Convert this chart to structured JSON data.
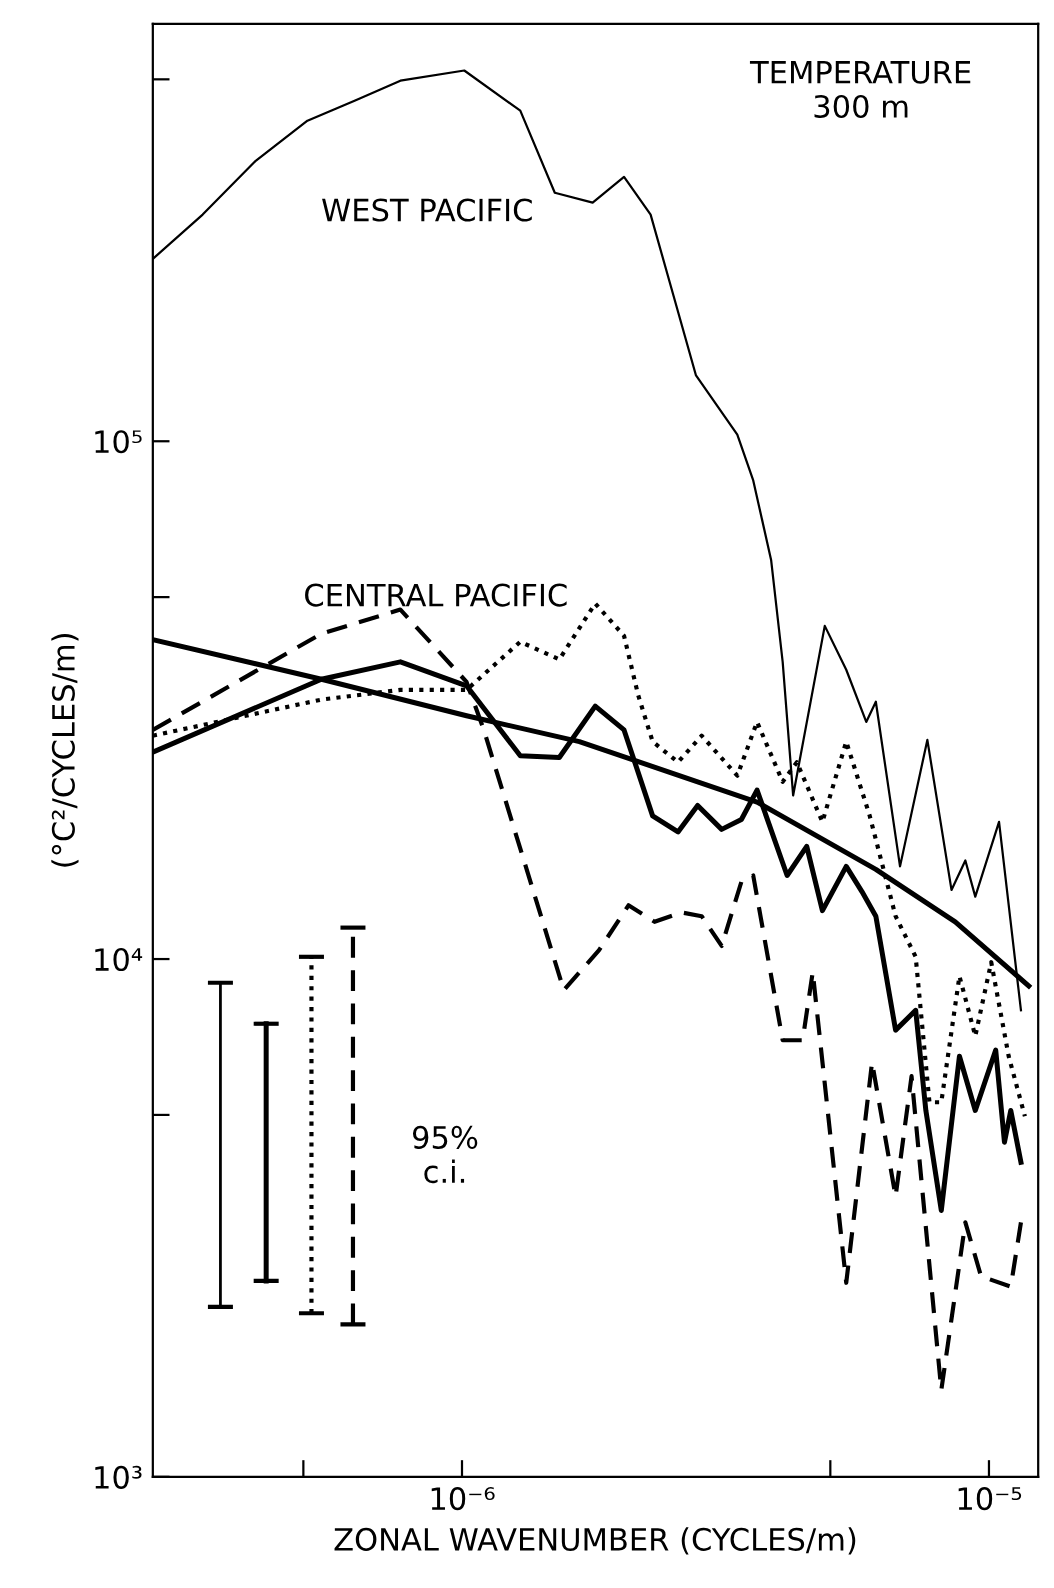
{
  "chart_data": {
    "type": "line",
    "title": "TEMPERATURE\n300 m",
    "xlabel": "ZONAL WAVENUMBER (CYCLES/m)",
    "ylabel": "(°C²/CYCLES/m)",
    "log": "xy",
    "xlim": [
      2.59e-07,
      1.24e-05
    ],
    "ylim": [
      1000,
      640000
    ],
    "xticks": [
      {
        "value": 5e-07,
        "label": null
      },
      {
        "value": 1e-06,
        "label": "10⁻⁶"
      },
      {
        "value": 5e-06,
        "label": null
      },
      {
        "value": 1e-05,
        "label": "10⁻⁵"
      }
    ],
    "yticks": [
      {
        "value": 1000,
        "label": "10³"
      },
      {
        "value": 5000,
        "label": null
      },
      {
        "value": 10000,
        "label": "10⁴"
      },
      {
        "value": 50000,
        "label": null
      },
      {
        "value": 100000,
        "label": "10⁵"
      },
      {
        "value": 500000,
        "label": null
      }
    ],
    "marker": "none",
    "grid": false,
    "annotations": [
      "WEST PACIFIC",
      "CENTRAL PACIFIC",
      "95%\nc.i."
    ],
    "series": [
      {
        "color": "#000000",
        "line_style": "solid",
        "x": [
          2.59e-07,
          3.22e-07,
          4.06e-07,
          5.09e-07,
          6.27e-07,
          7.64e-07,
          1.01e-06,
          1.29e-06,
          1.5e-06,
          1.77e-06,
          2.03e-06,
          2.28e-06,
          2.52e-06,
          2.78e-06,
          3.33e-06,
          3.57e-06,
          3.86e-06,
          4.06e-06,
          4.25e-06,
          4.88e-06,
          5.36e-06,
          5.85e-06,
          6.1e-06,
          6.78e-06,
          7.64e-06,
          8.49e-06,
          9.02e-06,
          9.42e-06,
          1.045e-05,
          1.15e-05
        ],
        "values": [
          225000,
          274000,
          348000,
          416000,
          455000,
          497000,
          520000,
          435000,
          302000,
          289000,
          324000,
          274000,
          191000,
          134000,
          103000,
          84000,
          59000,
          37500,
          20700,
          44000,
          36200,
          28700,
          31400,
          15100,
          26500,
          13600,
          15500,
          13200,
          18400,
          7960
        ]
      },
      {
        "color": "#000000",
        "line_style": "solid",
        "x": [
          2.59e-07,
          5.41e-07,
          7.64e-07,
          1.02e-06,
          1.29e-06,
          1.53e-06,
          1.79e-06,
          2.03e-06,
          2.3e-06,
          2.57e-06,
          2.8e-06,
          3.11e-06,
          3.39e-06,
          3.63e-06,
          4.14e-06,
          4.51e-06,
          4.83e-06,
          5.36e-06,
          5.74e-06,
          6.1e-06,
          6.65e-06,
          7.26e-06,
          7.59e-06,
          8.12e-06,
          8.79e-06,
          9.42e-06,
          1.03e-05,
          1.07e-05,
          1.1e-05,
          1.15e-05
        ],
        "values": [
          25100,
          34700,
          37500,
          33700,
          24700,
          24500,
          30800,
          27700,
          18900,
          17600,
          19800,
          17800,
          18600,
          21200,
          14500,
          16500,
          12400,
          15100,
          13500,
          12100,
          7290,
          7960,
          5100,
          3270,
          6490,
          5100,
          6670,
          4430,
          5100,
          4050
        ]
      },
      {
        "color": "#000000",
        "line_style": "dashed",
        "x": [
          2.59e-07,
          5.41e-07,
          7.64e-07,
          1.02e-06,
          1.1e-06,
          1.56e-06,
          1.82e-06,
          2.07e-06,
          2.32e-06,
          2.61e-06,
          2.85e-06,
          3.11e-06,
          3.39e-06,
          3.57e-06,
          4.06e-06,
          4.43e-06,
          4.63e-06,
          5.36e-06,
          6e-06,
          6.65e-06,
          7.13e-06,
          8.12e-06,
          9.02e-06,
          9.66e-06,
          1.1e-05,
          1.15e-05
        ],
        "values": [
          27700,
          42500,
          47300,
          34300,
          27700,
          8710,
          10400,
          12700,
          11800,
          12300,
          12100,
          10600,
          14100,
          14500,
          6970,
          6970,
          9440,
          2370,
          6320,
          3480,
          5940,
          1470,
          3100,
          2440,
          2330,
          3100
        ]
      },
      {
        "color": "#000000",
        "line_style": "dotted",
        "x": [
          2.59e-07,
          5.41e-07,
          7.64e-07,
          1.02e-06,
          1.29e-06,
          1.53e-06,
          1.79e-06,
          2.03e-06,
          2.16e-06,
          2.3e-06,
          2.57e-06,
          2.85e-06,
          3.33e-06,
          3.63e-06,
          4.06e-06,
          4.32e-06,
          4.83e-06,
          5.36e-06,
          5.94e-06,
          6.65e-06,
          7.26e-06,
          7.71e-06,
          8.12e-06,
          8.79e-06,
          9.42e-06,
          1.01e-05,
          1.09e-05,
          1.17e-05
        ],
        "values": [
          27000,
          31700,
          33100,
          33100,
          41000,
          37900,
          48600,
          42100,
          32300,
          26300,
          24000,
          27000,
          22600,
          28700,
          22000,
          24000,
          18400,
          26300,
          18900,
          12100,
          10100,
          5290,
          5290,
          9270,
          7100,
          9860,
          6490,
          4970
        ]
      },
      {
        "color": "#000000",
        "line_style": "solid",
        "x": [
          2.59e-07,
          5.41e-07,
          1.02e-06,
          1.67e-06,
          3.63e-06,
          6.1e-06,
          8.63e-06,
          1.19e-05
        ],
        "values": [
          41400,
          34700,
          29500,
          26300,
          20100,
          14900,
          11800,
          8870
        ]
      },
      {
        "color": "#000000",
        "line_style": "solid",
        "x": [
          3.48e-07,
          3.48e-07
        ],
        "values": [
          2130,
          9000
        ]
      },
      {
        "color": "#000000",
        "line_style": "solid",
        "x": [
          4.25e-07,
          4.25e-07
        ],
        "values": [
          2390,
          7500
        ]
      },
      {
        "color": "#000000",
        "line_style": "dotted",
        "x": [
          5.18e-07,
          5.18e-07
        ],
        "values": [
          2070,
          10100
        ]
      },
      {
        "color": "#000000",
        "line_style": "dashed",
        "x": [
          6.21e-07,
          6.21e-07
        ],
        "values": [
          1970,
          11500
        ]
      }
    ]
  }
}
